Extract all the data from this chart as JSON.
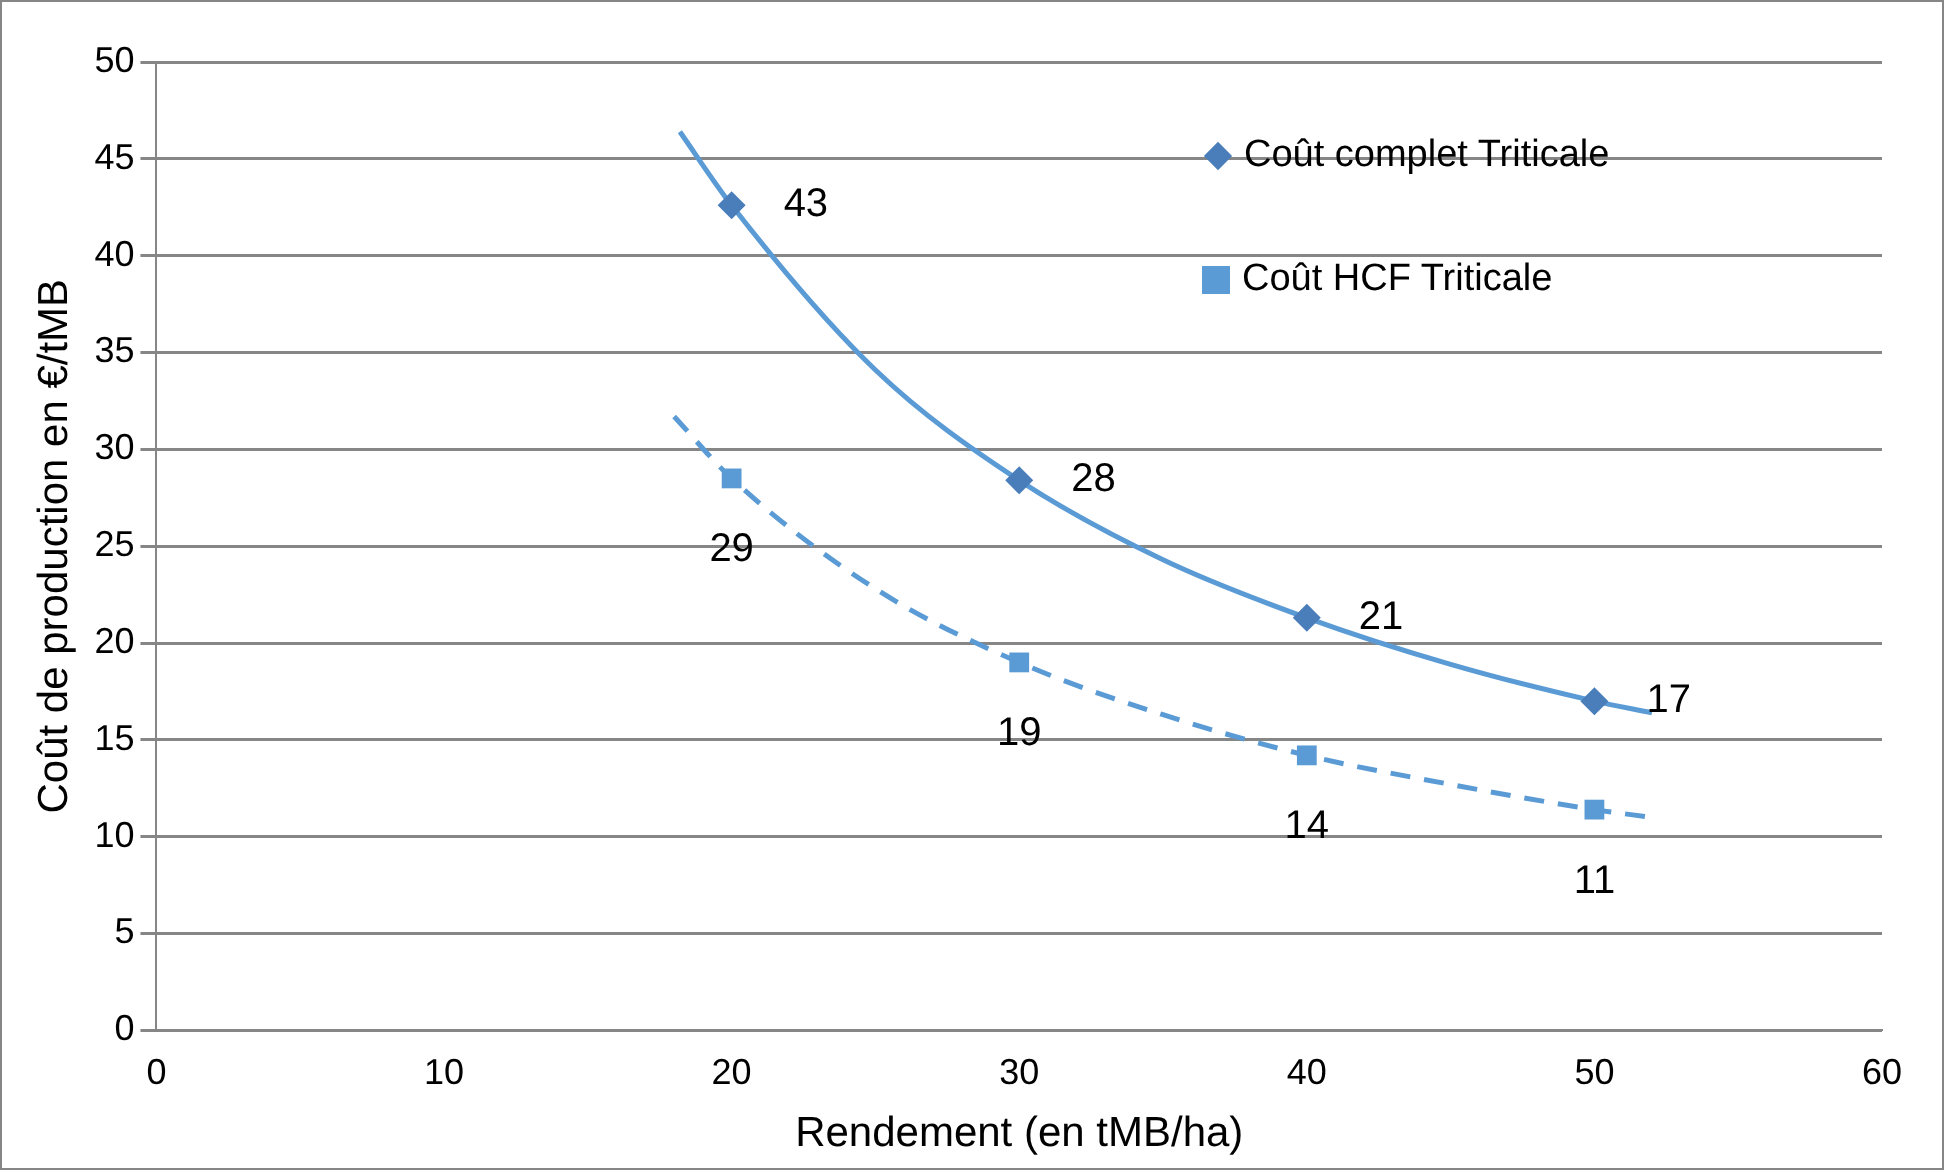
{
  "chart_data": {
    "type": "scatter",
    "xlabel": "Rendement (en tMB/ha)",
    "ylabel": "Coût de production en €/tMB",
    "xlim": [
      0,
      60
    ],
    "xticks": [
      0,
      10,
      20,
      30,
      40,
      50,
      60
    ],
    "ylim": [
      0,
      50
    ],
    "yticks": [
      0,
      5,
      10,
      15,
      20,
      25,
      30,
      35,
      40,
      45,
      50
    ],
    "grid": "y",
    "legend": "top right",
    "series": [
      {
        "name": "Coût complet Triticale",
        "color": "#4a7ebb",
        "marker": "diamond",
        "x": [
          20,
          30,
          40,
          50
        ],
        "values": [
          42.6,
          28.4,
          21.3,
          17.0
        ],
        "value_labels": [
          "43",
          "28",
          "21",
          "17"
        ]
      },
      {
        "name": "Coût HCF Triticale",
        "color": "#5b9bd5",
        "marker": "square",
        "x": [
          20,
          30,
          40,
          50
        ],
        "values": [
          28.5,
          19.0,
          14.2,
          11.4
        ],
        "value_labels": [
          "29",
          "19",
          "14",
          "11"
        ]
      },
      {
        "type": "line",
        "color": "#5b9bd5",
        "marker": "none",
        "line_style": "solid",
        "x": [
          18.2,
          20,
          25,
          30,
          35,
          40,
          45,
          50,
          52
        ],
        "values": [
          46.4,
          42.6,
          34.1,
          28.4,
          24.3,
          21.3,
          18.9,
          17.0,
          16.4
        ]
      },
      {
        "type": "line",
        "color": "#5b9bd5",
        "marker": "none",
        "line_style": "dashed",
        "x": [
          18,
          20,
          25,
          30,
          35,
          40,
          45,
          50,
          52
        ],
        "values": [
          31.7,
          28.5,
          22.8,
          19.0,
          16.3,
          14.2,
          12.7,
          11.4,
          11.0
        ]
      }
    ]
  }
}
